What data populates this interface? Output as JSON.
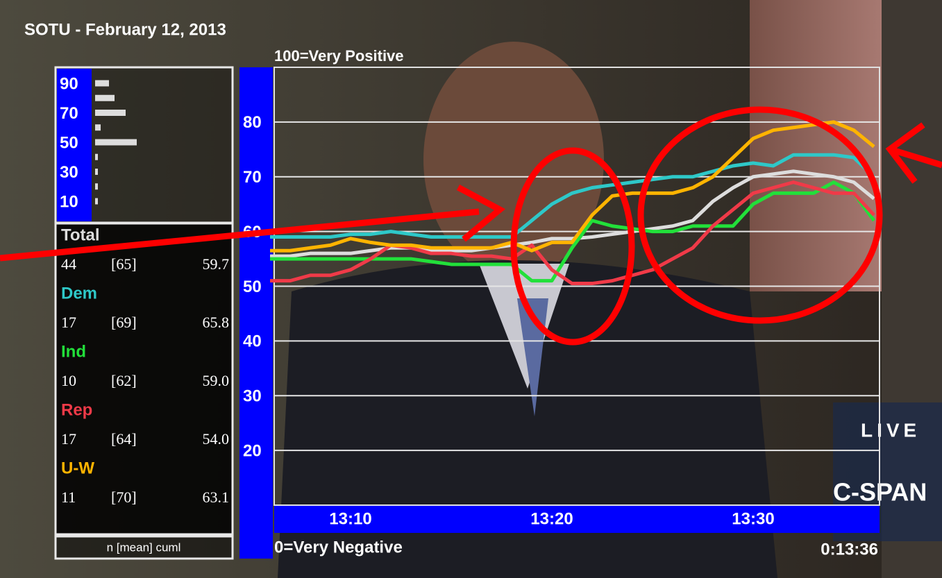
{
  "chart_data": [
    {
      "type": "line",
      "title": "SOTU - February 12, 2013",
      "y_top_label": "100=Very Positive",
      "y_bottom_label": "0=Very Negative",
      "timer": "0:13:36",
      "categories": [
        null,
        null,
        null,
        null,
        "13:10",
        null,
        null,
        null,
        null,
        null,
        null,
        null,
        null,
        null,
        "13:20",
        null,
        null,
        null,
        null,
        null,
        null,
        null,
        null,
        null,
        "13:30",
        null,
        null,
        null,
        null,
        null,
        null
      ],
      "ylim": [
        10,
        90
      ],
      "yticks": [
        20,
        30,
        40,
        50,
        60,
        70,
        80
      ],
      "grid": true,
      "stats_header": "n [mean] cuml",
      "series": [
        {
          "name": "Total",
          "color": "#dddddd",
          "stats": [
            "44",
            "[65]",
            "59.7"
          ],
          "values": [
            55.5,
            55.5,
            56,
            56,
            56,
            56.5,
            57,
            57,
            56.5,
            56.5,
            56.5,
            57,
            57.5,
            58,
            58.7,
            58.7,
            59,
            59.5,
            60,
            60.5,
            61,
            62,
            65.5,
            68,
            70,
            70.5,
            71,
            70.5,
            70,
            69,
            66
          ]
        },
        {
          "name": "Dem",
          "color": "#2ec8c8",
          "stats": [
            "17",
            "[69]",
            "65.8"
          ],
          "values": [
            59,
            59,
            59,
            59,
            59.5,
            59.5,
            60,
            59.5,
            59,
            59,
            59,
            59,
            59,
            62,
            65,
            67,
            68,
            68.5,
            69,
            69.5,
            70,
            70,
            71,
            72,
            72.5,
            72,
            74,
            74,
            74,
            73.5,
            70
          ]
        },
        {
          "name": "Ind",
          "color": "#22e03a",
          "stats": [
            "10",
            "[62]",
            "59.0"
          ],
          "values": [
            55,
            55,
            55,
            55,
            55,
            55,
            55,
            55,
            54.5,
            54,
            54,
            54,
            54,
            51,
            51,
            57,
            62,
            61,
            60.5,
            60,
            60,
            61,
            61,
            61,
            65,
            67,
            67,
            67,
            69,
            67,
            62
          ]
        },
        {
          "name": "Rep",
          "color": "#f03a48",
          "stats": [
            "17",
            "[64]",
            "54.0"
          ],
          "values": [
            51,
            51,
            52,
            52,
            53,
            55,
            57.5,
            57,
            56,
            56,
            55.5,
            55.5,
            55,
            57.5,
            53,
            50.5,
            50.5,
            51,
            52,
            53,
            55,
            57,
            61,
            64,
            67,
            68,
            69,
            68,
            67,
            67,
            63
          ]
        },
        {
          "name": "U-W",
          "color": "#ffb400",
          "stats": [
            "11",
            "[70]",
            "63.1"
          ],
          "values": [
            56.5,
            56.5,
            57,
            57.5,
            58.7,
            58,
            57.5,
            57.5,
            57,
            57,
            57,
            57,
            58,
            56.5,
            58,
            58,
            63,
            66.5,
            67,
            67,
            67,
            68,
            70,
            73.5,
            77,
            78.5,
            79,
            79.5,
            80,
            78.5,
            75.5
          ]
        }
      ]
    },
    {
      "type": "bar",
      "orientation": "horizontal",
      "categories": [
        "90",
        null,
        "70",
        null,
        "50",
        null,
        "30",
        null,
        "10"
      ],
      "values": [
        5,
        7,
        11,
        2,
        15,
        1,
        1,
        1,
        1
      ],
      "color": "#dddddd"
    }
  ],
  "broadcast": {
    "live": "LIVE",
    "network": "C-SPAN"
  }
}
